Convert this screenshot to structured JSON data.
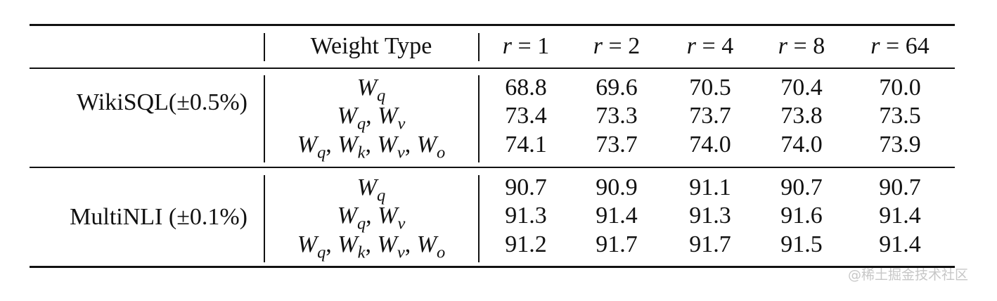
{
  "header": {
    "weight_type": "Weight Type",
    "ranks": [
      "r = 1",
      "r = 2",
      "r = 4",
      "r = 8",
      "r = 64"
    ]
  },
  "groups": [
    {
      "dataset": "WikiSQL(±0.5%)",
      "rows": [
        {
          "weight": "Wq",
          "values": [
            "68.8",
            "69.6",
            "70.5",
            "70.4",
            "70.0"
          ]
        },
        {
          "weight": "Wq, Wv",
          "values": [
            "73.4",
            "73.3",
            "73.7",
            "73.8",
            "73.5"
          ]
        },
        {
          "weight": "Wq, Wk, Wv, Wo",
          "values": [
            "74.1",
            "73.7",
            "74.0",
            "74.0",
            "73.9"
          ]
        }
      ]
    },
    {
      "dataset": "MultiNLI (±0.1%)",
      "rows": [
        {
          "weight": "Wq",
          "values": [
            "90.7",
            "90.9",
            "91.1",
            "90.7",
            "90.7"
          ]
        },
        {
          "weight": "Wq, Wv",
          "values": [
            "91.3",
            "91.4",
            "91.3",
            "91.6",
            "91.4"
          ]
        },
        {
          "weight": "Wq, Wk, Wv, Wo",
          "values": [
            "91.2",
            "91.7",
            "91.7",
            "91.5",
            "91.4"
          ]
        }
      ]
    }
  ],
  "watermark": "@稀土掘金技术社区"
}
